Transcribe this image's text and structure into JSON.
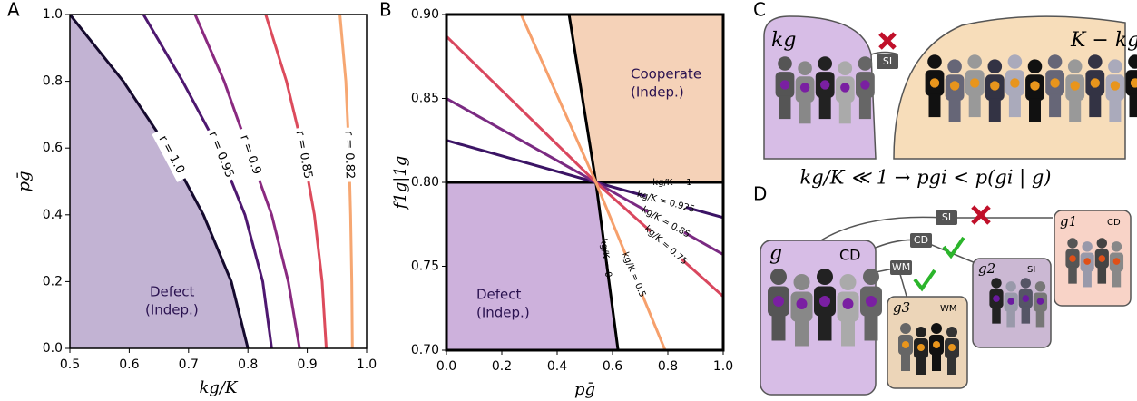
{
  "chart_data": [
    {
      "type": "line",
      "panel": "A",
      "x_label": "kg/K",
      "y_label": "pḡ",
      "xlim": [
        0.5,
        1
      ],
      "ylim": [
        0,
        1
      ],
      "xticks": [
        0.5,
        0.6,
        0.7,
        0.8,
        0.9,
        {
          "value": 1,
          "label": "1.0"
        }
      ],
      "yticks": [
        {
          "value": 0,
          "label": "0.0"
        },
        0.2,
        0.4,
        0.6,
        0.8,
        {
          "value": 1,
          "label": "1.0"
        }
      ],
      "annotations": [
        "Defect",
        "(Indep.)"
      ],
      "series": [
        {
          "name": "r = 1.0",
          "color": "#150a2e",
          "x": [
            0.5,
            0.59,
            0.665,
            0.725,
            0.772,
            0.8
          ],
          "values": [
            1,
            0.8,
            0.6,
            0.4,
            0.2,
            0
          ]
        },
        {
          "name": "r = 0.95",
          "color": "#4e1870",
          "x": [
            0.624,
            0.69,
            0.75,
            0.795,
            0.825,
            0.84
          ],
          "values": [
            1,
            0.8,
            0.6,
            0.4,
            0.2,
            0
          ]
        },
        {
          "name": "r = 0.9",
          "color": "#8a2a80",
          "x": [
            0.711,
            0.76,
            0.8,
            0.84,
            0.868,
            0.887
          ],
          "values": [
            1,
            0.8,
            0.6,
            0.4,
            0.2,
            0
          ]
        },
        {
          "name": "r = 0.85",
          "color": "#dc4b5c",
          "x": [
            0.83,
            0.865,
            0.892,
            0.912,
            0.925,
            0.932
          ],
          "values": [
            1,
            0.8,
            0.6,
            0.4,
            0.2,
            0
          ]
        },
        {
          "name": "r = 0.82",
          "color": "#f6a772",
          "x": [
            0.955,
            0.965,
            0.97,
            0.973,
            0.975,
            0.976
          ],
          "values": [
            1,
            0.8,
            0.6,
            0.4,
            0.2,
            0
          ]
        }
      ]
    },
    {
      "type": "line",
      "panel": "B",
      "x_label": "pḡ",
      "y_label": "f1g|1g",
      "xlim": [
        0,
        1
      ],
      "ylim": [
        0.7,
        0.9
      ],
      "xticks": [
        {
          "value": 0,
          "label": "0.0"
        },
        0.2,
        0.4,
        0.6,
        0.8,
        {
          "value": 1,
          "label": "1.0"
        }
      ],
      "yticks": [
        {
          "value": 0.7,
          "label": "0.70"
        },
        0.75,
        {
          "value": 0.8,
          "label": "0.80"
        },
        0.85,
        {
          "value": 0.9,
          "label": "0.90"
        }
      ],
      "annotations": [
        "Cooperate",
        "(Indep.)",
        "Defect",
        "(Indep.)"
      ],
      "series": [
        {
          "name": "kg/K = 0",
          "color": "#000000",
          "x": [
            0.443,
            0.54,
            0.62
          ],
          "values": [
            0.9,
            0.8,
            0.7
          ]
        },
        {
          "name": "kg/K = 1",
          "color": "#000000",
          "x": [
            0,
            0.54,
            1
          ],
          "values": [
            0.8,
            0.8,
            0.8
          ]
        },
        {
          "name": "kg/K = 0.925",
          "color": "#3b1465",
          "x": [
            0,
            0.54,
            1
          ],
          "values": [
            0.825,
            0.8,
            0.779
          ]
        },
        {
          "name": "kg/K = 0.85",
          "color": "#7a2a82",
          "x": [
            0,
            0.54,
            1
          ],
          "values": [
            0.85,
            0.8,
            0.757
          ]
        },
        {
          "name": "kg/K = 0.75",
          "color": "#d9475e",
          "x": [
            0,
            0.54,
            1
          ],
          "values": [
            0.887,
            0.8,
            0.732
          ]
        },
        {
          "name": "kg/K = 0.5",
          "color": "#f6a06c",
          "x": [
            0.27,
            0.54,
            0.79
          ],
          "values": [
            0.9,
            0.8,
            0.7
          ]
        }
      ]
    }
  ],
  "panel_labels": [
    "A",
    "B",
    "C",
    "D"
  ],
  "diagram_c": {
    "group": "kg",
    "rest": "K − kg",
    "link": "SI",
    "formula": "kg/K ≪ 1 → pgi < p(gi | g)"
  },
  "diagram_d": {
    "group": "g",
    "group_tag": "CD",
    "links": [
      "SI",
      "CD",
      "WM"
    ],
    "g1": {
      "label": "g1",
      "tag": "CD"
    },
    "g2": {
      "label": "g2",
      "tag": "SI"
    },
    "g3": {
      "label": "g3",
      "tag": "WM"
    }
  }
}
